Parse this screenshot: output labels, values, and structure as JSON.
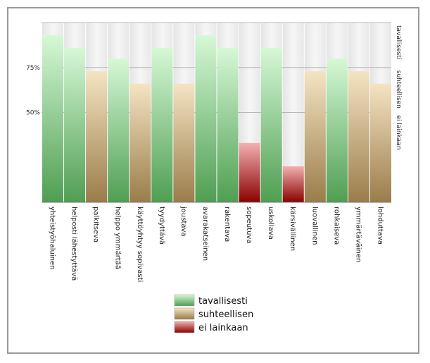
{
  "chart_data": {
    "type": "bar",
    "categories": [
      "yhteistyöhaluinen",
      "helposti lähestyttävä",
      "palkitseva",
      "helppo ymmärtää",
      "käyttöyhtyy sopivasti",
      "tyydyttävä",
      "joustava",
      "avarakatseinen",
      "rakentava",
      "sopeutuva",
      "uskollava",
      "kärsivällinen",
      "luovallinen",
      "rohkaiseva",
      "ymmärtäväinen",
      "lohduttava"
    ],
    "values": [
      93,
      86,
      73,
      80,
      66,
      86,
      66,
      93,
      86,
      33,
      86,
      20,
      73,
      80,
      73,
      66
    ],
    "levels": [
      "tavallisesti",
      "tavallisesti",
      "suhteellisen",
      "tavallisesti",
      "suhteellisen",
      "tavallisesti",
      "suhteellisen",
      "tavallisesti",
      "tavallisesti",
      "ei lainkaan",
      "tavallisesti",
      "ei lainkaan",
      "suhteellisen",
      "tavallisesti",
      "suhteellisen",
      "suhteellisen"
    ],
    "ylim": [
      0,
      100
    ],
    "yticks": [
      {
        "value": 75,
        "label": "75%"
      },
      {
        "value": 50,
        "label": "50%"
      }
    ],
    "right_labels": [
      {
        "value": 100,
        "label": "tavallisesti"
      },
      {
        "value": 75,
        "label": "suhteellisen"
      },
      {
        "value": 50,
        "label": "ei lainkaan"
      }
    ],
    "legend": {
      "position": "bottom",
      "entries": [
        {
          "label": "tavallisesti",
          "color": "#6fbf6f"
        },
        {
          "label": "suhteellisen",
          "color": "#b89a6a"
        },
        {
          "label": "ei lainkaan",
          "color": "#b01818"
        }
      ]
    },
    "colors": {
      "tavallisesti": [
        "#d6f8d6",
        "#4f9e52"
      ],
      "suhteellisen": [
        "#f4e4c3",
        "#9a7c4a"
      ],
      "ei lainkaan": [
        "#f2b0b0",
        "#8a0000"
      ]
    },
    "grid": true
  }
}
